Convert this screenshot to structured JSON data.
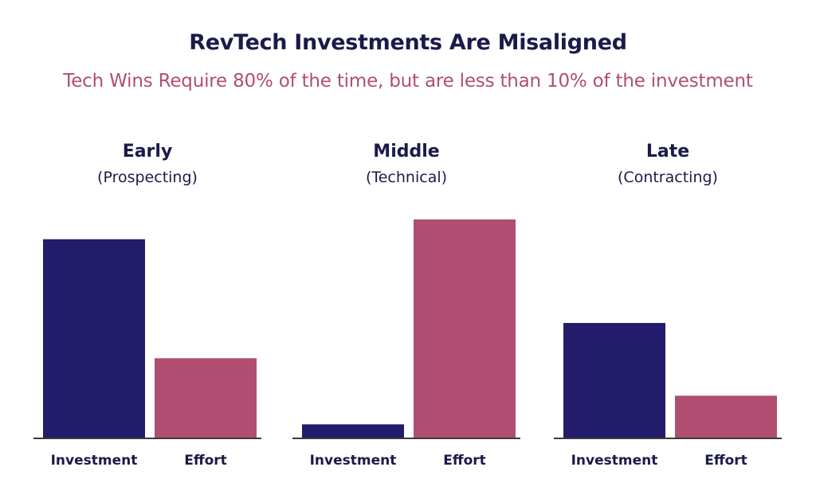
{
  "chart_data": {
    "type": "bar",
    "title": "RevTech Investments Are Misaligned",
    "subtitle": "Tech Wins Require 80% of the time, but are less than 10% of the investment",
    "categories": [
      "Investment",
      "Effort"
    ],
    "ylim": [
      0,
      100
    ],
    "grid": false,
    "colors": {
      "Investment": "#231c6b",
      "Effort": "#b04e72"
    },
    "panels": [
      {
        "stage": "Early",
        "sub": "(Prospecting)",
        "values": [
          90,
          36
        ]
      },
      {
        "stage": "Middle",
        "sub": "(Technical)",
        "values": [
          6,
          99
        ]
      },
      {
        "stage": "Late",
        "sub": "(Contracting)",
        "values": [
          52,
          19
        ]
      }
    ]
  }
}
